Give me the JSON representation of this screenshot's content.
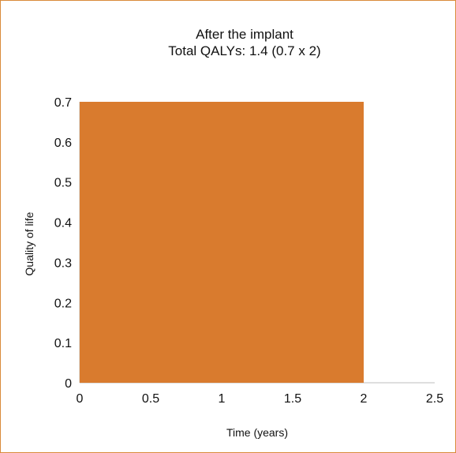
{
  "chart_data": {
    "type": "area",
    "title": "After the implant",
    "subtitle": "Total QALYs: 1.4 (0.7 x 2)",
    "xlabel": "Time (years)",
    "ylabel": "Quality of life",
    "x": [
      0,
      2
    ],
    "y": [
      0.7,
      0.7
    ],
    "xlim": [
      0,
      2.5
    ],
    "ylim": [
      0,
      0.7
    ],
    "xticks": [
      "0",
      "0.5",
      "1",
      "1.5",
      "2",
      "2.5"
    ],
    "yticks": [
      "0",
      "0.1",
      "0.2",
      "0.3",
      "0.4",
      "0.5",
      "0.6",
      "0.7"
    ],
    "grid": false,
    "legend": "none",
    "color": "#d97b2e"
  }
}
